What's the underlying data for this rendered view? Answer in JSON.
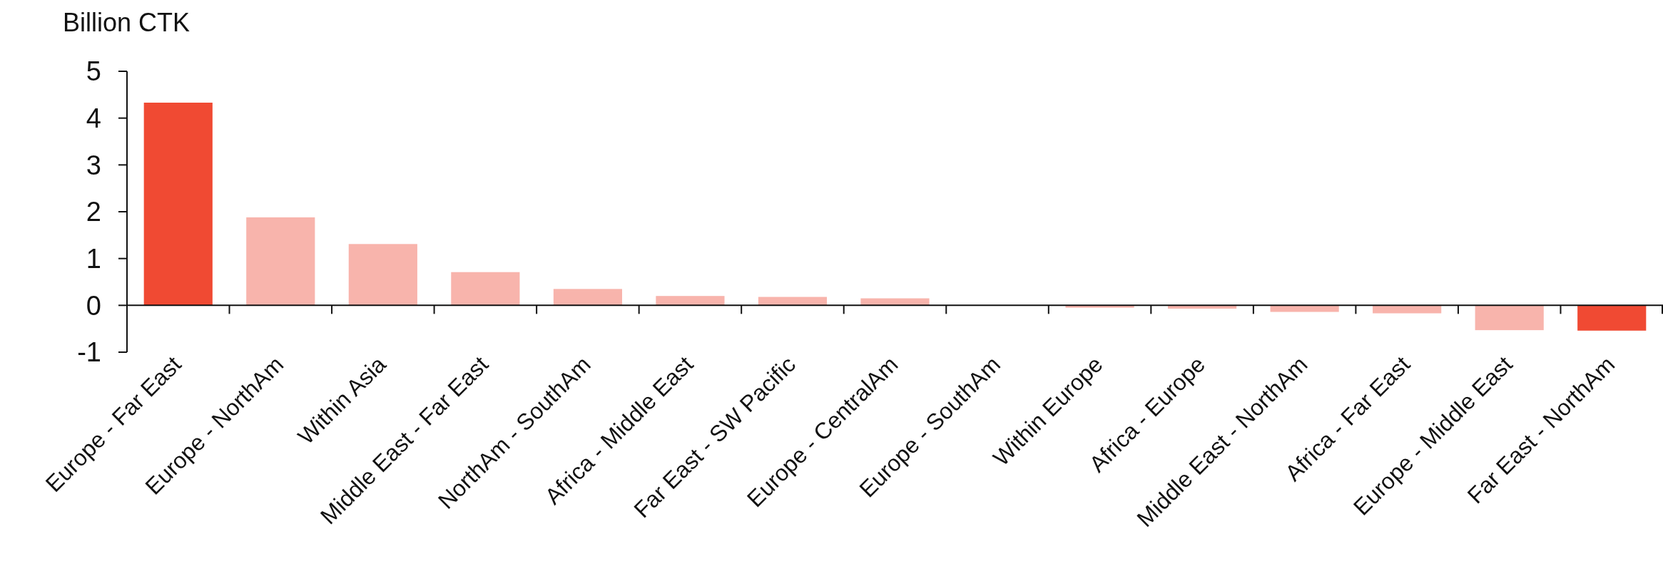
{
  "chart_data": {
    "type": "bar",
    "ylabel": "Billion CTK",
    "categories": [
      "Europe - Far East",
      "Europe - NorthAm",
      "Within Asia",
      "Middle East - Far East",
      "NorthAm - SouthAm",
      "Africa - Middle East",
      "Far East - SW Pacific",
      "Europe - CentralAm",
      "Europe - SouthAm",
      "Within Europe",
      "Africa - Europe",
      "Middle East - NorthAm",
      "Africa - Far East",
      "Europe - Middle East",
      "Far East - NorthAm"
    ],
    "values": [
      4.33,
      1.88,
      1.31,
      0.71,
      0.35,
      0.2,
      0.18,
      0.15,
      0,
      -0.05,
      -0.07,
      -0.14,
      -0.17,
      -0.53,
      -0.54
    ],
    "colors": [
      "#f04a33",
      "#f8b4ac",
      "#f8b4ac",
      "#f8b4ac",
      "#f8b4ac",
      "#f8b4ac",
      "#f8b4ac",
      "#f8b4ac",
      "#f8b4ac",
      "#f8b4ac",
      "#f8b4ac",
      "#f8b4ac",
      "#f8b4ac",
      "#f8b4ac",
      "#f04a33"
    ],
    "ylim": [
      -1,
      5
    ],
    "yticks": [
      -1,
      0,
      1,
      2,
      3,
      4,
      5
    ],
    "grid": false
  }
}
